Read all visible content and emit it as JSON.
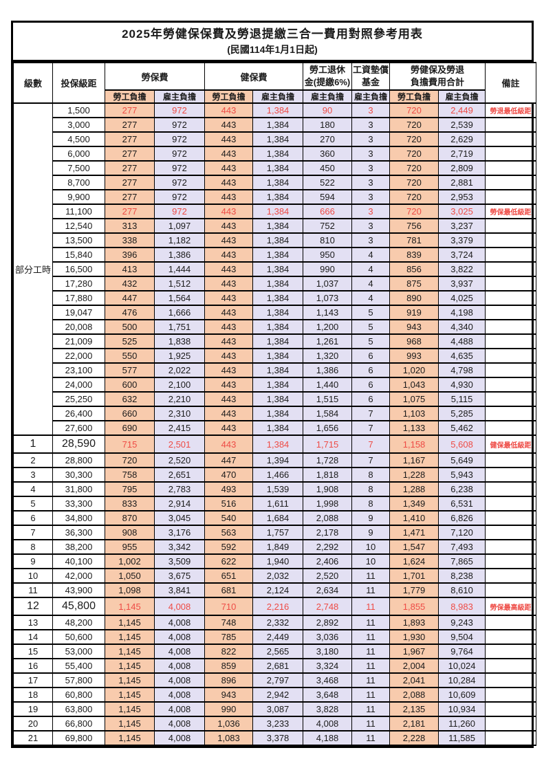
{
  "title": "2025年勞健保保費及勞退提繳三合一費用對照參考用表",
  "subtitle": "(民國114年1月1日起)",
  "header": {
    "level": "級數",
    "bracket": "投保級距",
    "labor_insurance": "勞保費",
    "health_insurance": "健保費",
    "pension_line1": "勞工退休",
    "pension_line2": "金(提繳6%)",
    "wage_fund_line1": "工資墊償",
    "wage_fund_line2": "基金",
    "total_line1": "勞健保及勞退",
    "total_line2": "負擔費用合計",
    "remark": "備註",
    "employee_share": "勞工負擔",
    "employer_share": "雇主負擔"
  },
  "parttime_label": "部分工時",
  "parttime_rowspan": 23,
  "colors": {
    "employee_bg": "#F8CBAD",
    "employer_bg": "#E3E0F3",
    "highlight_text": "#EE4B45",
    "border": "#000000"
  },
  "rows": [
    {
      "level": "",
      "bracket": "1,500",
      "labor_emp": "277",
      "labor_er": "972",
      "health_emp": "443",
      "health_er": "1,384",
      "pension": "90",
      "fund": "3",
      "total_emp": "720",
      "total_er": "2,449",
      "remark": "勞退最低級距",
      "red": true,
      "big": false
    },
    {
      "level": "",
      "bracket": "3,000",
      "labor_emp": "277",
      "labor_er": "972",
      "health_emp": "443",
      "health_er": "1,384",
      "pension": "180",
      "fund": "3",
      "total_emp": "720",
      "total_er": "2,539",
      "remark": "",
      "red": false,
      "big": false
    },
    {
      "level": "",
      "bracket": "4,500",
      "labor_emp": "277",
      "labor_er": "972",
      "health_emp": "443",
      "health_er": "1,384",
      "pension": "270",
      "fund": "3",
      "total_emp": "720",
      "total_er": "2,629",
      "remark": "",
      "red": false,
      "big": false
    },
    {
      "level": "",
      "bracket": "6,000",
      "labor_emp": "277",
      "labor_er": "972",
      "health_emp": "443",
      "health_er": "1,384",
      "pension": "360",
      "fund": "3",
      "total_emp": "720",
      "total_er": "2,719",
      "remark": "",
      "red": false,
      "big": false
    },
    {
      "level": "",
      "bracket": "7,500",
      "labor_emp": "277",
      "labor_er": "972",
      "health_emp": "443",
      "health_er": "1,384",
      "pension": "450",
      "fund": "3",
      "total_emp": "720",
      "total_er": "2,809",
      "remark": "",
      "red": false,
      "big": false
    },
    {
      "level": "",
      "bracket": "8,700",
      "labor_emp": "277",
      "labor_er": "972",
      "health_emp": "443",
      "health_er": "1,384",
      "pension": "522",
      "fund": "3",
      "total_emp": "720",
      "total_er": "2,881",
      "remark": "",
      "red": false,
      "big": false
    },
    {
      "level": "",
      "bracket": "9,900",
      "labor_emp": "277",
      "labor_er": "972",
      "health_emp": "443",
      "health_er": "1,384",
      "pension": "594",
      "fund": "3",
      "total_emp": "720",
      "total_er": "2,953",
      "remark": "",
      "red": false,
      "big": false
    },
    {
      "level": "",
      "bracket": "11,100",
      "labor_emp": "277",
      "labor_er": "972",
      "health_emp": "443",
      "health_er": "1,384",
      "pension": "666",
      "fund": "3",
      "total_emp": "720",
      "total_er": "3,025",
      "remark": "勞保最低級距",
      "red": true,
      "big": false
    },
    {
      "level": "",
      "bracket": "12,540",
      "labor_emp": "313",
      "labor_er": "1,097",
      "health_emp": "443",
      "health_er": "1,384",
      "pension": "752",
      "fund": "3",
      "total_emp": "756",
      "total_er": "3,237",
      "remark": "",
      "red": false,
      "big": false
    },
    {
      "level": "",
      "bracket": "13,500",
      "labor_emp": "338",
      "labor_er": "1,182",
      "health_emp": "443",
      "health_er": "1,384",
      "pension": "810",
      "fund": "3",
      "total_emp": "781",
      "total_er": "3,379",
      "remark": "",
      "red": false,
      "big": false
    },
    {
      "level": "",
      "bracket": "15,840",
      "labor_emp": "396",
      "labor_er": "1,386",
      "health_emp": "443",
      "health_er": "1,384",
      "pension": "950",
      "fund": "4",
      "total_emp": "839",
      "total_er": "3,724",
      "remark": "",
      "red": false,
      "big": false
    },
    {
      "level": "",
      "bracket": "16,500",
      "labor_emp": "413",
      "labor_er": "1,444",
      "health_emp": "443",
      "health_er": "1,384",
      "pension": "990",
      "fund": "4",
      "total_emp": "856",
      "total_er": "3,822",
      "remark": "",
      "red": false,
      "big": false
    },
    {
      "level": "",
      "bracket": "17,280",
      "labor_emp": "432",
      "labor_er": "1,512",
      "health_emp": "443",
      "health_er": "1,384",
      "pension": "1,037",
      "fund": "4",
      "total_emp": "875",
      "total_er": "3,937",
      "remark": "",
      "red": false,
      "big": false
    },
    {
      "level": "",
      "bracket": "17,880",
      "labor_emp": "447",
      "labor_er": "1,564",
      "health_emp": "443",
      "health_er": "1,384",
      "pension": "1,073",
      "fund": "4",
      "total_emp": "890",
      "total_er": "4,025",
      "remark": "",
      "red": false,
      "big": false
    },
    {
      "level": "",
      "bracket": "19,047",
      "labor_emp": "476",
      "labor_er": "1,666",
      "health_emp": "443",
      "health_er": "1,384",
      "pension": "1,143",
      "fund": "5",
      "total_emp": "919",
      "total_er": "4,198",
      "remark": "",
      "red": false,
      "big": false
    },
    {
      "level": "",
      "bracket": "20,008",
      "labor_emp": "500",
      "labor_er": "1,751",
      "health_emp": "443",
      "health_er": "1,384",
      "pension": "1,200",
      "fund": "5",
      "total_emp": "943",
      "total_er": "4,340",
      "remark": "",
      "red": false,
      "big": false
    },
    {
      "level": "",
      "bracket": "21,009",
      "labor_emp": "525",
      "labor_er": "1,838",
      "health_emp": "443",
      "health_er": "1,384",
      "pension": "1,261",
      "fund": "5",
      "total_emp": "968",
      "total_er": "4,488",
      "remark": "",
      "red": false,
      "big": false
    },
    {
      "level": "",
      "bracket": "22,000",
      "labor_emp": "550",
      "labor_er": "1,925",
      "health_emp": "443",
      "health_er": "1,384",
      "pension": "1,320",
      "fund": "6",
      "total_emp": "993",
      "total_er": "4,635",
      "remark": "",
      "red": false,
      "big": false
    },
    {
      "level": "",
      "bracket": "23,100",
      "labor_emp": "577",
      "labor_er": "2,022",
      "health_emp": "443",
      "health_er": "1,384",
      "pension": "1,386",
      "fund": "6",
      "total_emp": "1,020",
      "total_er": "4,798",
      "remark": "",
      "red": false,
      "big": false
    },
    {
      "level": "",
      "bracket": "24,000",
      "labor_emp": "600",
      "labor_er": "2,100",
      "health_emp": "443",
      "health_er": "1,384",
      "pension": "1,440",
      "fund": "6",
      "total_emp": "1,043",
      "total_er": "4,930",
      "remark": "",
      "red": false,
      "big": false
    },
    {
      "level": "",
      "bracket": "25,250",
      "labor_emp": "632",
      "labor_er": "2,210",
      "health_emp": "443",
      "health_er": "1,384",
      "pension": "1,515",
      "fund": "6",
      "total_emp": "1,075",
      "total_er": "5,115",
      "remark": "",
      "red": false,
      "big": false
    },
    {
      "level": "",
      "bracket": "26,400",
      "labor_emp": "660",
      "labor_er": "2,310",
      "health_emp": "443",
      "health_er": "1,384",
      "pension": "1,584",
      "fund": "7",
      "total_emp": "1,103",
      "total_er": "5,285",
      "remark": "",
      "red": false,
      "big": false
    },
    {
      "level": "",
      "bracket": "27,600",
      "labor_emp": "690",
      "labor_er": "2,415",
      "health_emp": "443",
      "health_er": "1,384",
      "pension": "1,656",
      "fund": "7",
      "total_emp": "1,133",
      "total_er": "5,462",
      "remark": "",
      "red": false,
      "big": false
    },
    {
      "level": "1",
      "bracket": "28,590",
      "labor_emp": "715",
      "labor_er": "2,501",
      "health_emp": "443",
      "health_er": "1,384",
      "pension": "1,715",
      "fund": "7",
      "total_emp": "1,158",
      "total_er": "5,608",
      "remark": "健保最低級距",
      "red": true,
      "big": true
    },
    {
      "level": "2",
      "bracket": "28,800",
      "labor_emp": "720",
      "labor_er": "2,520",
      "health_emp": "447",
      "health_er": "1,394",
      "pension": "1,728",
      "fund": "7",
      "total_emp": "1,167",
      "total_er": "5,649",
      "remark": "",
      "red": false,
      "big": false
    },
    {
      "level": "3",
      "bracket": "30,300",
      "labor_emp": "758",
      "labor_er": "2,651",
      "health_emp": "470",
      "health_er": "1,466",
      "pension": "1,818",
      "fund": "8",
      "total_emp": "1,228",
      "total_er": "5,943",
      "remark": "",
      "red": false,
      "big": false
    },
    {
      "level": "4",
      "bracket": "31,800",
      "labor_emp": "795",
      "labor_er": "2,783",
      "health_emp": "493",
      "health_er": "1,539",
      "pension": "1,908",
      "fund": "8",
      "total_emp": "1,288",
      "total_er": "6,238",
      "remark": "",
      "red": false,
      "big": false
    },
    {
      "level": "5",
      "bracket": "33,300",
      "labor_emp": "833",
      "labor_er": "2,914",
      "health_emp": "516",
      "health_er": "1,611",
      "pension": "1,998",
      "fund": "8",
      "total_emp": "1,349",
      "total_er": "6,531",
      "remark": "",
      "red": false,
      "big": false
    },
    {
      "level": "6",
      "bracket": "34,800",
      "labor_emp": "870",
      "labor_er": "3,045",
      "health_emp": "540",
      "health_er": "1,684",
      "pension": "2,088",
      "fund": "9",
      "total_emp": "1,410",
      "total_er": "6,826",
      "remark": "",
      "red": false,
      "big": false
    },
    {
      "level": "7",
      "bracket": "36,300",
      "labor_emp": "908",
      "labor_er": "3,176",
      "health_emp": "563",
      "health_er": "1,757",
      "pension": "2,178",
      "fund": "9",
      "total_emp": "1,471",
      "total_er": "7,120",
      "remark": "",
      "red": false,
      "big": false
    },
    {
      "level": "8",
      "bracket": "38,200",
      "labor_emp": "955",
      "labor_er": "3,342",
      "health_emp": "592",
      "health_er": "1,849",
      "pension": "2,292",
      "fund": "10",
      "total_emp": "1,547",
      "total_er": "7,493",
      "remark": "",
      "red": false,
      "big": false
    },
    {
      "level": "9",
      "bracket": "40,100",
      "labor_emp": "1,002",
      "labor_er": "3,509",
      "health_emp": "622",
      "health_er": "1,940",
      "pension": "2,406",
      "fund": "10",
      "total_emp": "1,624",
      "total_er": "7,865",
      "remark": "",
      "red": false,
      "big": false
    },
    {
      "level": "10",
      "bracket": "42,000",
      "labor_emp": "1,050",
      "labor_er": "3,675",
      "health_emp": "651",
      "health_er": "2,032",
      "pension": "2,520",
      "fund": "11",
      "total_emp": "1,701",
      "total_er": "8,238",
      "remark": "",
      "red": false,
      "big": false
    },
    {
      "level": "11",
      "bracket": "43,900",
      "labor_emp": "1,098",
      "labor_er": "3,841",
      "health_emp": "681",
      "health_er": "2,124",
      "pension": "2,634",
      "fund": "11",
      "total_emp": "1,779",
      "total_er": "8,610",
      "remark": "",
      "red": false,
      "big": false
    },
    {
      "level": "12",
      "bracket": "45,800",
      "labor_emp": "1,145",
      "labor_er": "4,008",
      "health_emp": "710",
      "health_er": "2,216",
      "pension": "2,748",
      "fund": "11",
      "total_emp": "1,855",
      "total_er": "8,983",
      "remark": "勞保最高級距",
      "red": true,
      "big": true
    },
    {
      "level": "13",
      "bracket": "48,200",
      "labor_emp": "1,145",
      "labor_er": "4,008",
      "health_emp": "748",
      "health_er": "2,332",
      "pension": "2,892",
      "fund": "11",
      "total_emp": "1,893",
      "total_er": "9,243",
      "remark": "",
      "red": false,
      "big": false
    },
    {
      "level": "14",
      "bracket": "50,600",
      "labor_emp": "1,145",
      "labor_er": "4,008",
      "health_emp": "785",
      "health_er": "2,449",
      "pension": "3,036",
      "fund": "11",
      "total_emp": "1,930",
      "total_er": "9,504",
      "remark": "",
      "red": false,
      "big": false
    },
    {
      "level": "15",
      "bracket": "53,000",
      "labor_emp": "1,145",
      "labor_er": "4,008",
      "health_emp": "822",
      "health_er": "2,565",
      "pension": "3,180",
      "fund": "11",
      "total_emp": "1,967",
      "total_er": "9,764",
      "remark": "",
      "red": false,
      "big": false
    },
    {
      "level": "16",
      "bracket": "55,400",
      "labor_emp": "1,145",
      "labor_er": "4,008",
      "health_emp": "859",
      "health_er": "2,681",
      "pension": "3,324",
      "fund": "11",
      "total_emp": "2,004",
      "total_er": "10,024",
      "remark": "",
      "red": false,
      "big": false
    },
    {
      "level": "17",
      "bracket": "57,800",
      "labor_emp": "1,145",
      "labor_er": "4,008",
      "health_emp": "896",
      "health_er": "2,797",
      "pension": "3,468",
      "fund": "11",
      "total_emp": "2,041",
      "total_er": "10,284",
      "remark": "",
      "red": false,
      "big": false
    },
    {
      "level": "18",
      "bracket": "60,800",
      "labor_emp": "1,145",
      "labor_er": "4,008",
      "health_emp": "943",
      "health_er": "2,942",
      "pension": "3,648",
      "fund": "11",
      "total_emp": "2,088",
      "total_er": "10,609",
      "remark": "",
      "red": false,
      "big": false
    },
    {
      "level": "19",
      "bracket": "63,800",
      "labor_emp": "1,145",
      "labor_er": "4,008",
      "health_emp": "990",
      "health_er": "3,087",
      "pension": "3,828",
      "fund": "11",
      "total_emp": "2,135",
      "total_er": "10,934",
      "remark": "",
      "red": false,
      "big": false
    },
    {
      "level": "20",
      "bracket": "66,800",
      "labor_emp": "1,145",
      "labor_er": "4,008",
      "health_emp": "1,036",
      "health_er": "3,233",
      "pension": "4,008",
      "fund": "11",
      "total_emp": "2,181",
      "total_er": "11,260",
      "remark": "",
      "red": false,
      "big": false
    },
    {
      "level": "21",
      "bracket": "69,800",
      "labor_emp": "1,145",
      "labor_er": "4,008",
      "health_emp": "1,083",
      "health_er": "3,378",
      "pension": "4,188",
      "fund": "11",
      "total_emp": "2,228",
      "total_er": "11,585",
      "remark": "",
      "red": false,
      "big": false
    }
  ]
}
